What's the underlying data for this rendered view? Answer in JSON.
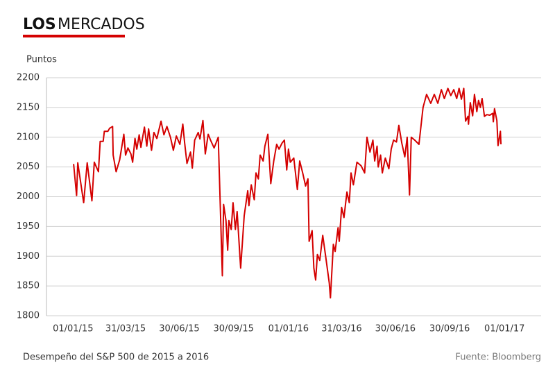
{
  "chart_data": {
    "type": "line",
    "title": [
      "LOS",
      "MERCADOS"
    ],
    "y_label": "Puntos",
    "caption": "Desempeño del S&P 500 de 2015 a 2016",
    "source": "Fuente: Bloomberg",
    "ylim": [
      1800,
      2200
    ],
    "yticks": [
      1800,
      1850,
      1900,
      1950,
      2000,
      2050,
      2100,
      2150,
      2200
    ],
    "xlim": [
      "2014-11-17",
      "2017-03-04"
    ],
    "xticks": [
      {
        "value": "2015-01-01",
        "label": "01/01/15"
      },
      {
        "value": "2015-03-31",
        "label": "31/03/15"
      },
      {
        "value": "2015-06-30",
        "label": "30/06/15"
      },
      {
        "value": "2015-09-30",
        "label": "30/09/15"
      },
      {
        "value": "2016-01-01",
        "label": "01/01/16"
      },
      {
        "value": "2016-03-31",
        "label": "31/03/16"
      },
      {
        "value": "2016-06-30",
        "label": "30/06/16"
      },
      {
        "value": "2016-09-30",
        "label": "30/09/16"
      },
      {
        "value": "2017-01-01",
        "label": "01/01/17"
      }
    ],
    "grid": true,
    "x": [
      "2015-01-02",
      "2015-01-07",
      "2015-01-09",
      "2015-01-19",
      "2015-01-25",
      "2015-02-02",
      "2015-02-06",
      "2015-02-13",
      "2015-02-16",
      "2015-02-21",
      "2015-02-23",
      "2015-03-01",
      "2015-03-04",
      "2015-03-09",
      "2015-03-10",
      "2015-03-15",
      "2015-03-21",
      "2015-03-28",
      "2015-03-31",
      "2015-04-04",
      "2015-04-09",
      "2015-04-12",
      "2015-04-16",
      "2015-04-19",
      "2015-04-23",
      "2015-04-26",
      "2015-05-02",
      "2015-05-06",
      "2015-05-09",
      "2015-05-14",
      "2015-05-18",
      "2015-05-23",
      "2015-05-30",
      "2015-06-04",
      "2015-06-09",
      "2015-06-15",
      "2015-06-20",
      "2015-06-25",
      "2015-07-01",
      "2015-07-06",
      "2015-07-09",
      "2015-07-13",
      "2015-07-19",
      "2015-07-22",
      "2015-07-26",
      "2015-08-01",
      "2015-08-04",
      "2015-08-09",
      "2015-08-13",
      "2015-08-18",
      "2015-08-22",
      "2015-08-28",
      "2015-09-04",
      "2015-09-11",
      "2015-09-13",
      "2015-09-17",
      "2015-09-20",
      "2015-09-22",
      "2015-09-26",
      "2015-09-29",
      "2015-10-03",
      "2015-10-06",
      "2015-10-12",
      "2015-10-18",
      "2015-10-24",
      "2015-10-26",
      "2015-10-30",
      "2015-11-04",
      "2015-11-07",
      "2015-11-11",
      "2015-11-14",
      "2015-11-19",
      "2015-11-22",
      "2015-11-27",
      "2015-12-02",
      "2015-12-07",
      "2015-12-12",
      "2015-12-16",
      "2015-12-21",
      "2015-12-25",
      "2015-12-29",
      "2016-01-01",
      "2016-01-04",
      "2016-01-10",
      "2016-01-16",
      "2016-01-20",
      "2016-01-25",
      "2016-01-30",
      "2016-02-03",
      "2016-02-05",
      "2016-02-10",
      "2016-02-13",
      "2016-02-16",
      "2016-02-19",
      "2016-02-23",
      "2016-02-28",
      "2016-03-04",
      "2016-03-10",
      "2016-03-12",
      "2016-03-17",
      "2016-03-20",
      "2016-03-25",
      "2016-03-27",
      "2016-03-31",
      "2016-04-04",
      "2016-04-09",
      "2016-04-13",
      "2016-04-16",
      "2016-04-20",
      "2016-04-26",
      "2016-05-03",
      "2016-05-09",
      "2016-05-13",
      "2016-05-18",
      "2016-05-23",
      "2016-05-26",
      "2016-05-30",
      "2016-06-01",
      "2016-06-05",
      "2016-06-08",
      "2016-06-13",
      "2016-06-19",
      "2016-06-23",
      "2016-06-27",
      "2016-07-02",
      "2016-07-06",
      "2016-07-11",
      "2016-07-16",
      "2016-07-20",
      "2016-07-24",
      "2016-07-27",
      "2016-08-02",
      "2016-08-09",
      "2016-08-16",
      "2016-08-22",
      "2016-08-29",
      "2016-09-04",
      "2016-09-10",
      "2016-09-16",
      "2016-09-21",
      "2016-09-27",
      "2016-10-02",
      "2016-10-07",
      "2016-10-12",
      "2016-10-16",
      "2016-10-20",
      "2016-10-24",
      "2016-10-27",
      "2016-10-31",
      "2016-11-01",
      "2016-11-04",
      "2016-11-08",
      "2016-11-11",
      "2016-11-15",
      "2016-11-18",
      "2016-11-21",
      "2016-11-24",
      "2016-11-28",
      "2016-12-02",
      "2016-12-07",
      "2016-12-12",
      "2016-12-13",
      "2016-12-15",
      "2016-12-19",
      "2016-12-21",
      "2016-12-25",
      "2016-12-26"
    ],
    "series": [
      {
        "name": "S&P 500",
        "color": "#d40000",
        "values": [
          2055,
          2002,
          2057,
          1990,
          2057,
          1993,
          2058,
          2042,
          2093,
          2093,
          2110,
          2110,
          2115,
          2118,
          2070,
          2042,
          2062,
          2105,
          2070,
          2082,
          2072,
          2058,
          2098,
          2080,
          2104,
          2083,
          2117,
          2085,
          2114,
          2078,
          2108,
          2098,
          2127,
          2104,
          2118,
          2100,
          2078,
          2102,
          2088,
          2122,
          2091,
          2056,
          2075,
          2048,
          2095,
          2108,
          2097,
          2128,
          2072,
          2105,
          2095,
          2082,
          2100,
          1867,
          1987,
          1960,
          1910,
          1960,
          1945,
          1990,
          1945,
          1975,
          1880,
          1968,
          2010,
          1985,
          2020,
          1995,
          2040,
          2030,
          2070,
          2060,
          2085,
          2105,
          2022,
          2060,
          2088,
          2080,
          2090,
          2095,
          2045,
          2080,
          2058,
          2065,
          2012,
          2060,
          2040,
          2018,
          2030,
          1925,
          1943,
          1880,
          1860,
          1903,
          1893,
          1935,
          1900,
          1855,
          1830,
          1920,
          1908,
          1948,
          1925,
          1982,
          1965,
          2008,
          1990,
          2040,
          2020,
          2058,
          2052,
          2040,
          2100,
          2075,
          2095,
          2060,
          2085,
          2050,
          2070,
          2040,
          2065,
          2047,
          2080,
          2095,
          2092,
          2120,
          2090,
          2067,
          2100,
          2003,
          2100,
          2095,
          2088,
          2150,
          2172,
          2157,
          2172,
          2157,
          2180,
          2165,
          2182,
          2170,
          2180,
          2165,
          2182,
          2164,
          2182,
          2127,
          2135,
          2122,
          2158,
          2136,
          2172,
          2143,
          2162,
          2150,
          2165,
          2135,
          2138,
          2137,
          2140,
          2126,
          2148,
          2128,
          2086,
          2110,
          2088
        ]
      }
    ]
  }
}
